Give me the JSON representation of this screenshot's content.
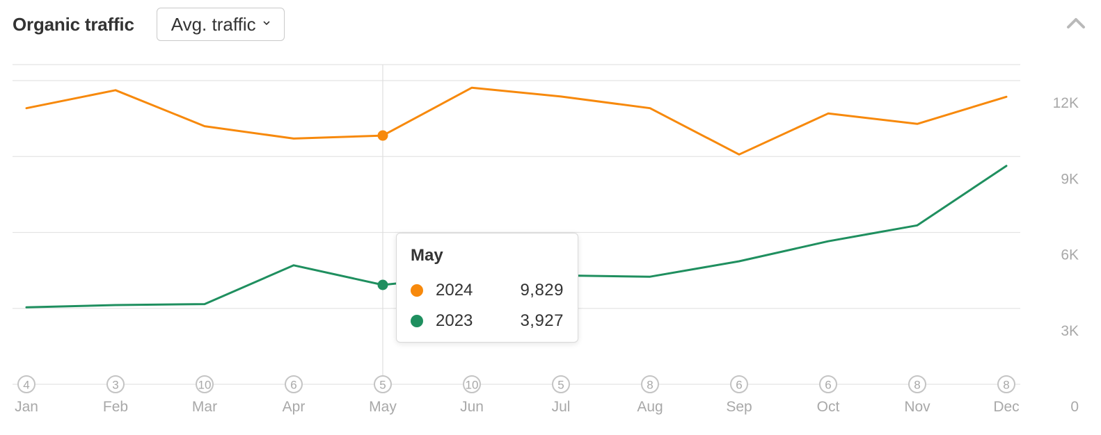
{
  "header": {
    "title": "Organic traffic",
    "dropdown_label": "Avg. traffic",
    "collapse_icon": "chevron-up-icon"
  },
  "colors": {
    "series_2024": "#f7890c",
    "series_2023": "#1f8f5f",
    "grid": "#e4e4e4",
    "axis_text": "#a8a8a8",
    "marker_ring": "#c4c4c4"
  },
  "tooltip": {
    "month": "May",
    "rows": [
      {
        "label": "2024",
        "value": "9,829",
        "color": "#f7890c"
      },
      {
        "label": "2023",
        "value": "3,927",
        "color": "#1f8f5f"
      }
    ]
  },
  "chart_data": {
    "type": "line",
    "categories": [
      "Jan",
      "Feb",
      "Mar",
      "Apr",
      "May",
      "Jun",
      "Jul",
      "Aug",
      "Sep",
      "Oct",
      "Nov",
      "Dec"
    ],
    "series": [
      {
        "name": "2024",
        "color": "#f7890c",
        "values": [
          10910,
          11620,
          10200,
          9710,
          9829,
          11720,
          11370,
          10910,
          9080,
          10700,
          10290,
          11360
        ]
      },
      {
        "name": "2023",
        "color": "#1f8f5f",
        "values": [
          3040,
          3130,
          3170,
          4700,
          3927,
          4290,
          4300,
          4250,
          4860,
          5650,
          6280,
          8630
        ]
      }
    ],
    "event_markers": [
      4,
      3,
      10,
      6,
      5,
      10,
      5,
      8,
      6,
      6,
      8,
      8
    ],
    "y_ticks": [
      "0",
      "3K",
      "6K",
      "9K",
      "12K"
    ],
    "ylim": [
      0,
      12000
    ],
    "y_axis_position": "right",
    "grid": true,
    "highlight_category": "May"
  }
}
